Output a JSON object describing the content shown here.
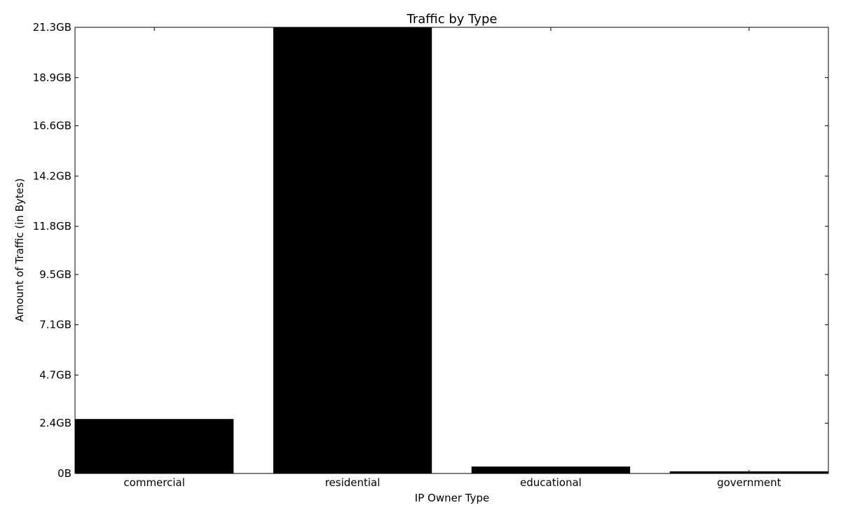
{
  "chart_data": {
    "type": "bar",
    "title": "Traffic by Type",
    "xlabel": "IP Owner Type",
    "ylabel": "Amount of Traffic (in Bytes)",
    "categories": [
      "commercial",
      "residential",
      "educational",
      "government"
    ],
    "values_gb": [
      2.6,
      21.3,
      0.33,
      0.1
    ],
    "ylim_gb": [
      0,
      21.3
    ],
    "yticks_gb": [
      0,
      2.4,
      4.7,
      7.1,
      9.5,
      11.8,
      14.2,
      16.6,
      18.9,
      21.3
    ],
    "ytick_labels": [
      "0B",
      "2.4GB",
      "4.7GB",
      "7.1GB",
      "9.5GB",
      "11.8GB",
      "14.2GB",
      "16.6GB",
      "18.9GB",
      "21.3GB"
    ],
    "bar_color": "#000000",
    "grid": false,
    "legend": "none"
  }
}
